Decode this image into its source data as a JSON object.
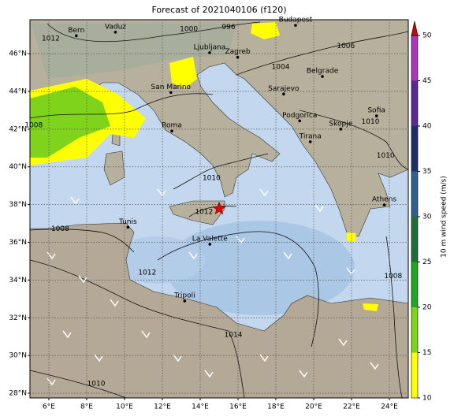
{
  "chart_data": {
    "type": "map",
    "title": "Forecast of 2021040106 (f120)",
    "xlim": [
      5,
      25
    ],
    "ylim": [
      27.75,
      47.8
    ],
    "xticks": [
      {
        "value": 6,
        "label": "6°E"
      },
      {
        "value": 8,
        "label": "8°E"
      },
      {
        "value": 10,
        "label": "10°E"
      },
      {
        "value": 12,
        "label": "12°E"
      },
      {
        "value": 14,
        "label": "14°E"
      },
      {
        "value": 16,
        "label": "16°E"
      },
      {
        "value": 18,
        "label": "18°E"
      },
      {
        "value": 20,
        "label": "20°E"
      },
      {
        "value": 22,
        "label": "22°E"
      },
      {
        "value": 24,
        "label": "24°E"
      }
    ],
    "yticks": [
      {
        "value": 28,
        "label": "28°N"
      },
      {
        "value": 30,
        "label": "30°N"
      },
      {
        "value": 32,
        "label": "32°N"
      },
      {
        "value": 34,
        "label": "34°N"
      },
      {
        "value": 36,
        "label": "36°N"
      },
      {
        "value": 38,
        "label": "38°N"
      },
      {
        "value": 40,
        "label": "40°N"
      },
      {
        "value": 42,
        "label": "42°N"
      },
      {
        "value": 44,
        "label": "44°N"
      },
      {
        "value": 46,
        "label": "46°N"
      }
    ],
    "grid": true,
    "cities": [
      {
        "name": "Bern",
        "lon": 7.45,
        "lat": 46.95
      },
      {
        "name": "Vaduz",
        "lon": 9.52,
        "lat": 47.14
      },
      {
        "name": "Budapest",
        "lon": 19.04,
        "lat": 47.5
      },
      {
        "name": "Ljubljana",
        "lon": 14.5,
        "lat": 46.05
      },
      {
        "name": "Zagreb",
        "lon": 15.98,
        "lat": 45.81
      },
      {
        "name": "San Marino",
        "lon": 12.45,
        "lat": 43.94
      },
      {
        "name": "Belgrade",
        "lon": 20.46,
        "lat": 44.79
      },
      {
        "name": "Sarajevo",
        "lon": 18.41,
        "lat": 43.86
      },
      {
        "name": "Roma",
        "lon": 12.5,
        "lat": 41.9
      },
      {
        "name": "Podgorica",
        "lon": 19.26,
        "lat": 42.44
      },
      {
        "name": "Skopje",
        "lon": 21.43,
        "lat": 42.0
      },
      {
        "name": "Sofia",
        "lon": 23.32,
        "lat": 42.7
      },
      {
        "name": "Tirana",
        "lon": 19.82,
        "lat": 41.33
      },
      {
        "name": "Athens",
        "lon": 23.73,
        "lat": 37.98
      },
      {
        "name": "Tunis",
        "lon": 10.18,
        "lat": 36.8
      },
      {
        "name": "La Valette",
        "lon": 14.51,
        "lat": 35.9
      },
      {
        "name": "Tripoli",
        "lon": 13.18,
        "lat": 32.89
      }
    ],
    "marker": {
      "lon": 15.0,
      "lat": 37.78,
      "color": "#e00000"
    },
    "contour_labels": [
      {
        "value": 1012,
        "lon": 6.1,
        "lat": 46.8
      },
      {
        "value": 1000,
        "lon": 13.4,
        "lat": 47.3
      },
      {
        "value": 996,
        "lon": 15.5,
        "lat": 47.4
      },
      {
        "value": 1006,
        "lon": 21.7,
        "lat": 46.4
      },
      {
        "value": 1004,
        "lon": 18.25,
        "lat": 45.3
      },
      {
        "value": 1008,
        "lon": 5.2,
        "lat": 42.2
      },
      {
        "value": 1010,
        "lon": 14.6,
        "lat": 39.4
      },
      {
        "value": 1012,
        "lon": 14.2,
        "lat": 37.6
      },
      {
        "value": 1008,
        "lon": 6.6,
        "lat": 36.7
      },
      {
        "value": 1012,
        "lon": 11.2,
        "lat": 34.4
      },
      {
        "value": 1014,
        "lon": 15.75,
        "lat": 31.1
      },
      {
        "value": 1010,
        "lon": 8.5,
        "lat": 28.5
      },
      {
        "value": 1008,
        "lon": 24.2,
        "lat": 34.2
      },
      {
        "value": 1010,
        "lon": 23.8,
        "lat": 40.6
      },
      {
        "value": 1010,
        "lon": 23.0,
        "lat": 42.4
      }
    ],
    "colorbar": {
      "label": "10 m wind speed (m/s)",
      "lim": [
        10,
        50
      ],
      "ticks": [
        10,
        15,
        20,
        25,
        30,
        35,
        40,
        45,
        50
      ],
      "colors": [
        "#ffff00",
        "#7fd31a",
        "#1fa81f",
        "#1e6e3a",
        "#2f6090",
        "#1c2f6a",
        "#5a2a90",
        "#a838b8"
      ],
      "extend_color": "#d40000"
    }
  }
}
